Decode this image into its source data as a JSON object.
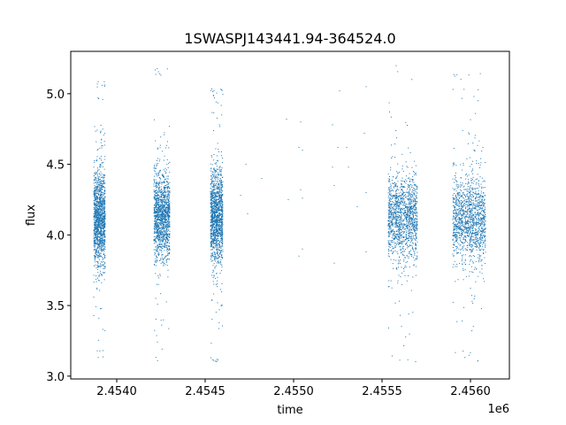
{
  "chart_data": {
    "type": "scatter",
    "title": "1SWASPJ143441.94-364524.0",
    "xlabel": "time",
    "ylabel": "flux",
    "offset_label": "1e6",
    "xlim": [
      2453740,
      2456220
    ],
    "ylim": [
      2.98,
      5.3
    ],
    "x_ticks": [
      2454000,
      2454500,
      2455000,
      2455500,
      2456000
    ],
    "x_tick_labels": [
      "2.4540",
      "2.4545",
      "2.4550",
      "2.4555",
      "2.4560"
    ],
    "y_ticks": [
      3.0,
      3.5,
      4.0,
      4.5,
      5.0
    ],
    "y_tick_labels": [
      "3.0",
      "3.5",
      "4.0",
      "4.5",
      "5.0"
    ],
    "grid": false,
    "marker_color": "#1f77b4",
    "clusters": [
      {
        "x_start": 2453870,
        "x_end": 2453935,
        "median": 4.12,
        "spread": 0.22,
        "ymin": 3.1,
        "ymax": 5.1
      },
      {
        "x_start": 2454210,
        "x_end": 2454300,
        "median": 4.13,
        "spread": 0.2,
        "ymin": 3.1,
        "ymax": 5.18
      },
      {
        "x_start": 2454530,
        "x_end": 2454600,
        "median": 4.13,
        "spread": 0.22,
        "ymin": 3.1,
        "ymax": 5.05
      },
      {
        "x_start": 2455535,
        "x_end": 2455700,
        "median": 4.13,
        "spread": 0.2,
        "ymin": 3.1,
        "ymax": 5.2
      },
      {
        "x_start": 2455900,
        "x_end": 2456085,
        "median": 4.12,
        "spread": 0.2,
        "ymin": 3.1,
        "ymax": 5.15
      }
    ],
    "sparse_points": [
      {
        "x": 2454700,
        "y": 4.28
      },
      {
        "x": 2454730,
        "y": 4.5
      },
      {
        "x": 2454740,
        "y": 4.15
      },
      {
        "x": 2454820,
        "y": 4.4
      },
      {
        "x": 2454960,
        "y": 4.82
      },
      {
        "x": 2454970,
        "y": 4.25
      },
      {
        "x": 2455030,
        "y": 4.62
      },
      {
        "x": 2455030,
        "y": 3.85
      },
      {
        "x": 2455040,
        "y": 4.32
      },
      {
        "x": 2455040,
        "y": 4.8
      },
      {
        "x": 2455050,
        "y": 4.6
      },
      {
        "x": 2455050,
        "y": 4.26
      },
      {
        "x": 2455050,
        "y": 3.9
      },
      {
        "x": 2455220,
        "y": 4.78
      },
      {
        "x": 2455220,
        "y": 4.48
      },
      {
        "x": 2455230,
        "y": 4.35
      },
      {
        "x": 2455230,
        "y": 3.8
      },
      {
        "x": 2455250,
        "y": 4.62
      },
      {
        "x": 2455260,
        "y": 5.02
      },
      {
        "x": 2455300,
        "y": 4.62
      },
      {
        "x": 2455310,
        "y": 4.48
      },
      {
        "x": 2455360,
        "y": 4.2
      },
      {
        "x": 2455400,
        "y": 4.72
      },
      {
        "x": 2455410,
        "y": 5.05
      },
      {
        "x": 2455410,
        "y": 4.3
      },
      {
        "x": 2455410,
        "y": 3.88
      }
    ]
  }
}
